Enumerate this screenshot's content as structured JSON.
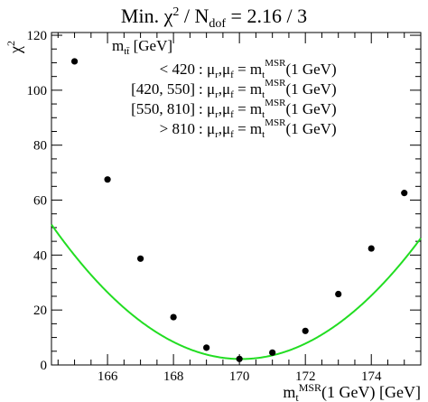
{
  "chart_data": {
    "type": "scatter",
    "title": {
      "main": "Min. χ",
      "sup": "2",
      "mid": " / N",
      "sub": "dof",
      "tail": " = 2.16 / 3"
    },
    "ylabel": {
      "main": "χ",
      "sup": "2"
    },
    "xlabel": {
      "main": "m",
      "sub": "t",
      "sup": "MSR",
      "tail": "(1 GeV) [GeV]"
    },
    "xlim": [
      164.3,
      175.5
    ],
    "ylim": [
      0,
      121
    ],
    "xticks": [
      166,
      168,
      170,
      172,
      174
    ],
    "yticks": [
      0,
      20,
      40,
      60,
      80,
      100,
      120
    ],
    "legend": {
      "placement": "top-right",
      "header": {
        "main": "m",
        "sub": "tt̄",
        "tail": " [GeV]"
      },
      "rows": [
        {
          "range": "< 420",
          "scale": "μ",
          "r": "r",
          "f": "f",
          "eq": " = m",
          "t": "t",
          "sup": "MSR",
          "tail": "(1 GeV)"
        },
        {
          "range": "[420, 550]",
          "scale": "μ",
          "r": "r",
          "f": "f",
          "eq": " = m",
          "t": "t",
          "sup": "MSR",
          "tail": "(1 GeV)"
        },
        {
          "range": "[550, 810]",
          "scale": "μ",
          "r": "r",
          "f": "f",
          "eq": " = m",
          "t": "t",
          "sup": "MSR",
          "tail": "(1 GeV)"
        },
        {
          "range": "> 810",
          "scale": "μ",
          "r": "r",
          "f": "f",
          "eq": " = m",
          "t": "t",
          "sup": "MSR",
          "tail": "(1 GeV)"
        }
      ]
    },
    "points": [
      {
        "x": 165,
        "y": 110.5
      },
      {
        "x": 166,
        "y": 67.5
      },
      {
        "x": 167,
        "y": 38.7
      },
      {
        "x": 168,
        "y": 17.4
      },
      {
        "x": 169,
        "y": 6.3
      },
      {
        "x": 170,
        "y": 2.2
      },
      {
        "x": 171,
        "y": 4.5
      },
      {
        "x": 172,
        "y": 12.4
      },
      {
        "x": 173,
        "y": 25.8
      },
      {
        "x": 174,
        "y": 42.4
      },
      {
        "x": 175,
        "y": 62.6
      }
    ],
    "fit": {
      "a": 1.48,
      "x0": 170.05,
      "c": 2.16,
      "color": "#22dd22"
    },
    "point_color": "#000000"
  }
}
